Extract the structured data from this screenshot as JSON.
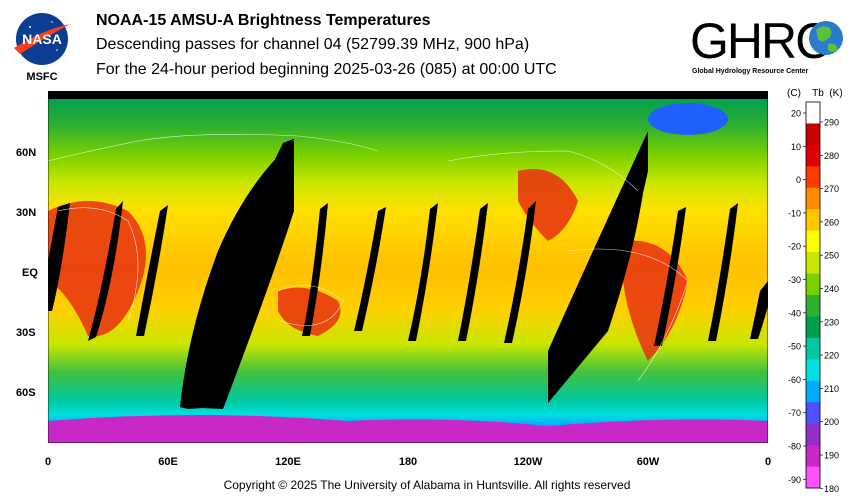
{
  "titles": {
    "line1": "NOAA-15 AMSU-A Brightness Temperatures",
    "line2": "Descending passes for channel 04 (52799.39 MHz, 900 hPa)",
    "line3": "For the 24-hour period beginning 2025-03-26 (085) at 00:00 UTC"
  },
  "nasa_logo": {
    "text": "NASA",
    "sublabel": "MSFC"
  },
  "ghrc_logo": {
    "text": "GHRC",
    "subtitle": "Global Hydrology Resource Center"
  },
  "lat_labels": [
    "60N",
    "30N",
    "EQ",
    "30S",
    "60S"
  ],
  "lon_labels": [
    "0",
    "60E",
    "120E",
    "180",
    "120W",
    "60W",
    "0"
  ],
  "colorbar": {
    "unit_c": "(C)",
    "tb_label": "Tb",
    "unit_k": "(K)",
    "celsius_ticks": [
      "20",
      "10",
      "0",
      "-10",
      "-20",
      "-30",
      "-40",
      "-50",
      "-60",
      "-70",
      "-80",
      "-90"
    ],
    "kelvin_ticks": [
      "290",
      "280",
      "270",
      "260",
      "250",
      "240",
      "230",
      "220",
      "210",
      "200",
      "190",
      "180"
    ],
    "colors": [
      "#ff50ff",
      "#c828c8",
      "#9030c8",
      "#5050ff",
      "#00aaff",
      "#00e0e0",
      "#00c8a0",
      "#00a050",
      "#30b030",
      "#78d000",
      "#c8e600",
      "#ffff00",
      "#ffc800",
      "#ff8c00",
      "#ff3c00",
      "#e00000",
      "#c80000",
      "#ffffff"
    ]
  },
  "copyright": "Copyright © 2025 The University of Alabama in Huntsville.  All rights reserved"
}
